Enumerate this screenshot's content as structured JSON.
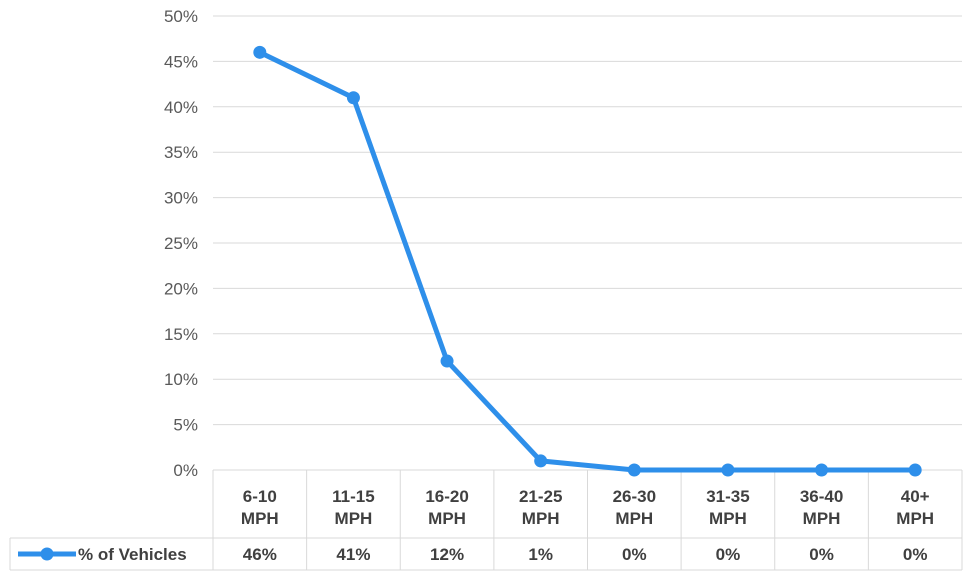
{
  "chart_data": {
    "type": "line",
    "categories": [
      [
        "6-10",
        "MPH"
      ],
      [
        "11-15",
        "MPH"
      ],
      [
        "16-20",
        "MPH"
      ],
      [
        "21-25",
        "MPH"
      ],
      [
        "26-30",
        "MPH"
      ],
      [
        "31-35",
        "MPH"
      ],
      [
        "36-40",
        "MPH"
      ],
      [
        "40+",
        "MPH"
      ]
    ],
    "series": [
      {
        "name": "% of Vehicles",
        "values": [
          46,
          41,
          12,
          1,
          0,
          0,
          0,
          0
        ],
        "value_labels": [
          "46%",
          "41%",
          "12%",
          "1%",
          "0%",
          "0%",
          "0%",
          "0%"
        ],
        "color": "#2E8FEA"
      }
    ],
    "y_ticks": [
      "0%",
      "5%",
      "10%",
      "15%",
      "20%",
      "25%",
      "30%",
      "35%",
      "40%",
      "45%",
      "50%"
    ],
    "ylim": [
      0,
      50
    ],
    "grid": true,
    "legend": "data-table",
    "gridline_color": "#D9D9D9"
  }
}
